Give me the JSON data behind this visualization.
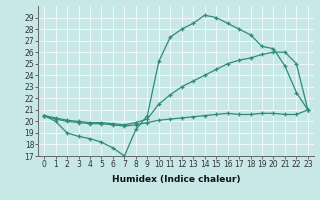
{
  "xlabel": "Humidex (Indice chaleur)",
  "x": [
    0,
    1,
    2,
    3,
    4,
    5,
    6,
    7,
    8,
    9,
    10,
    11,
    12,
    13,
    14,
    15,
    16,
    17,
    18,
    19,
    20,
    21,
    22,
    23
  ],
  "line_max": [
    20.5,
    20.0,
    19.0,
    18.7,
    18.5,
    18.2,
    17.7,
    17.0,
    19.3,
    20.5,
    25.2,
    27.3,
    28.0,
    28.5,
    29.2,
    29.0,
    28.5,
    28.0,
    27.5,
    26.5,
    26.3,
    24.8,
    22.5,
    21.0
  ],
  "line_mean": [
    20.5,
    20.3,
    20.1,
    20.0,
    19.9,
    19.9,
    19.8,
    19.7,
    19.9,
    20.2,
    21.5,
    22.3,
    23.0,
    23.5,
    24.0,
    24.5,
    25.0,
    25.3,
    25.5,
    25.8,
    26.0,
    26.0,
    25.0,
    21.0
  ],
  "line_min": [
    20.5,
    20.2,
    20.0,
    19.9,
    19.8,
    19.8,
    19.7,
    19.6,
    19.7,
    19.9,
    20.1,
    20.2,
    20.3,
    20.4,
    20.5,
    20.6,
    20.7,
    20.6,
    20.6,
    20.7,
    20.7,
    20.6,
    20.6,
    21.0
  ],
  "color": "#2e8b7a",
  "bg_color": "#c8e8e8",
  "ylim": [
    17,
    30
  ],
  "yticks": [
    17,
    18,
    19,
    20,
    21,
    22,
    23,
    24,
    25,
    26,
    27,
    28,
    29
  ],
  "xticks": [
    0,
    1,
    2,
    3,
    4,
    5,
    6,
    7,
    8,
    9,
    10,
    11,
    12,
    13,
    14,
    15,
    16,
    17,
    18,
    19,
    20,
    21,
    22,
    23
  ],
  "xlim": [
    -0.5,
    23.5
  ],
  "tick_fontsize": 5.5,
  "xlabel_fontsize": 6.5
}
